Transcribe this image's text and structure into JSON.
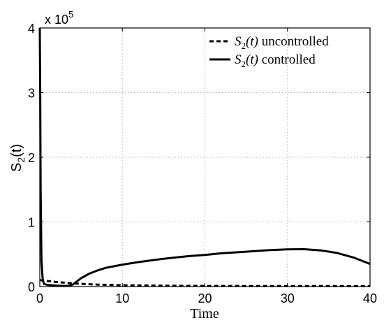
{
  "chart_data": {
    "type": "line",
    "title": "",
    "xlabel": "Time",
    "ylabel": "S2(t)",
    "xlim": [
      0,
      40
    ],
    "ylim": [
      0,
      400000
    ],
    "xticks": [
      0,
      10,
      20,
      30,
      40
    ],
    "yticks": [
      0,
      100000,
      200000,
      300000,
      400000
    ],
    "xtick_labels": [
      "0",
      "10",
      "20",
      "30",
      "40"
    ],
    "ytick_labels": [
      "0",
      "1",
      "2",
      "3",
      "4"
    ],
    "y_exponent": "x 10",
    "y_exponent_power": "5",
    "grid": true,
    "legend_position": "top-right",
    "series": [
      {
        "name": "S2(t) uncontrolled",
        "legend_math": "S",
        "legend_sub": "2",
        "legend_arg": "(t)",
        "legend_word": "uncontrolled",
        "style": "dashed",
        "color": "#000000",
        "x": [
          0,
          1,
          2,
          3,
          4,
          5,
          7,
          10,
          15,
          20,
          25,
          30,
          35,
          40
        ],
        "y": [
          10000,
          8500,
          7000,
          6000,
          5000,
          4200,
          3000,
          2000,
          1300,
          1000,
          900,
          800,
          750,
          700
        ]
      },
      {
        "name": "S2(t) controlled",
        "legend_math": "S",
        "legend_sub": "2",
        "legend_arg": "(t)",
        "legend_word": "controlled",
        "style": "solid",
        "color": "#000000",
        "x": [
          0,
          0.05,
          0.1,
          0.2,
          0.35,
          0.5,
          1,
          2,
          3,
          3.5,
          4,
          5,
          6,
          7,
          8,
          10,
          12,
          15,
          18,
          20,
          22,
          25,
          28,
          30,
          32,
          34,
          36,
          38,
          40
        ],
        "y": [
          400000,
          300000,
          150000,
          40000,
          12000,
          4000,
          2500,
          1500,
          1000,
          1200,
          3000,
          13000,
          20000,
          25000,
          29000,
          34000,
          38000,
          43000,
          47000,
          49000,
          51500,
          54000,
          56500,
          57500,
          57800,
          56000,
          52000,
          45000,
          35000
        ]
      }
    ]
  }
}
